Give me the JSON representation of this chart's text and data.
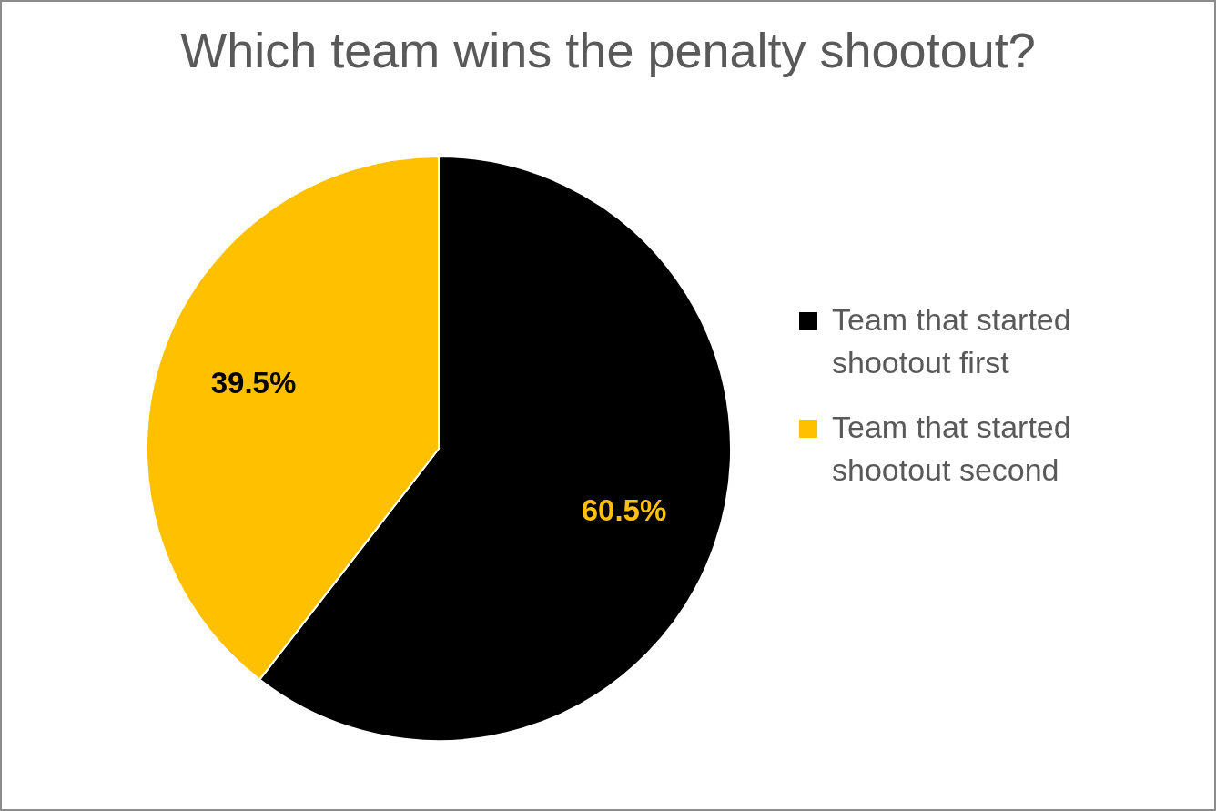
{
  "chart_data": {
    "type": "pie",
    "title": "Which team wins the penalty shootout?",
    "categories": [
      "Team that started shootout first",
      "Team that started shootout second"
    ],
    "values": [
      60.5,
      39.5
    ],
    "colors": [
      "#000000",
      "#ffc000"
    ],
    "value_labels": [
      "60.5%",
      "39.5%"
    ],
    "legend": "right"
  }
}
